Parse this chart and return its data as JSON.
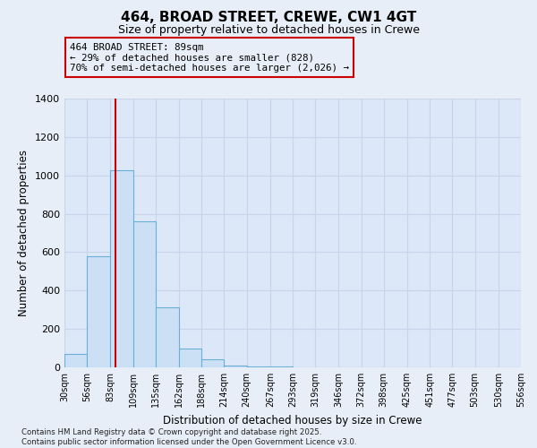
{
  "title1": "464, BROAD STREET, CREWE, CW1 4GT",
  "title2": "Size of property relative to detached houses in Crewe",
  "xlabel": "Distribution of detached houses by size in Crewe",
  "ylabel": "Number of detached properties",
  "bins": [
    30,
    56,
    83,
    109,
    135,
    162,
    188,
    214,
    240,
    267,
    293,
    319,
    346,
    372,
    398,
    425,
    451,
    477,
    503,
    530,
    556
  ],
  "counts": [
    70,
    580,
    1025,
    760,
    315,
    100,
    40,
    10,
    5,
    3,
    2,
    2,
    1,
    1,
    1,
    1,
    1,
    1,
    1,
    1
  ],
  "bar_color": "#cce0f5",
  "bar_edge_color": "#6aafd6",
  "vline_x": 89,
  "vline_color": "#cc0000",
  "annotation_line1": "464 BROAD STREET: 89sqm",
  "annotation_line2": "← 29% of detached houses are smaller (828)",
  "annotation_line3": "70% of semi-detached houses are larger (2,026) →",
  "annotation_box_color": "#cc0000",
  "ylim": [
    0,
    1400
  ],
  "yticks": [
    0,
    200,
    400,
    600,
    800,
    1000,
    1200,
    1400
  ],
  "footer": "Contains HM Land Registry data © Crown copyright and database right 2025.\nContains public sector information licensed under the Open Government Licence v3.0.",
  "bg_color": "#e8eef8",
  "grid_color": "#c8d4e8",
  "plot_bg_color": "#dce8f8"
}
